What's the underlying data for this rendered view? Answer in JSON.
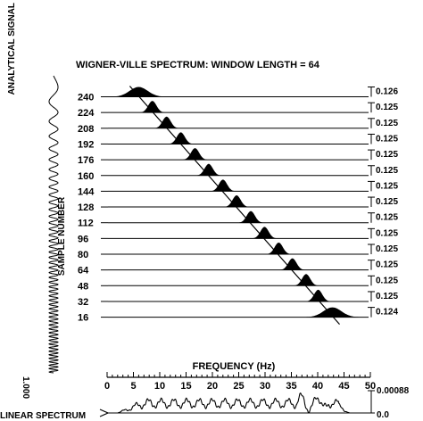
{
  "chart_data": {
    "type": "line",
    "title": "WIGNER-VILLE SPECTRUM: WINDOW LENGTH = 64",
    "left_label": "ANALYTICAL SIGNAL",
    "ylabel": "SAMPLE NUMBER",
    "xlabel": "FREQUENCY (Hz)",
    "bottom_label": "LINEAR SPECTRUM",
    "bottom_left_value": "1.000",
    "bottom_right_top": "0.00088",
    "bottom_right_bottom": "0.0",
    "xlim": [
      0,
      50
    ],
    "x_ticks": [
      "0",
      "5",
      "10",
      "15",
      "20",
      "25",
      "30",
      "35",
      "40",
      "45",
      "50"
    ],
    "rows": [
      {
        "sample": "240",
        "peak_freq": 6.0,
        "max": "0.126"
      },
      {
        "sample": "224",
        "peak_freq": 8.6,
        "max": "0.125"
      },
      {
        "sample": "208",
        "peak_freq": 11.3,
        "max": "0.125"
      },
      {
        "sample": "192",
        "peak_freq": 14.0,
        "max": "0.125"
      },
      {
        "sample": "176",
        "peak_freq": 16.7,
        "max": "0.125"
      },
      {
        "sample": "160",
        "peak_freq": 19.3,
        "max": "0.125"
      },
      {
        "sample": "144",
        "peak_freq": 22.0,
        "max": "0.125"
      },
      {
        "sample": "128",
        "peak_freq": 24.6,
        "max": "0.125"
      },
      {
        "sample": "112",
        "peak_freq": 27.3,
        "max": "0.125"
      },
      {
        "sample": "96",
        "peak_freq": 29.9,
        "max": "0.125"
      },
      {
        "sample": "80",
        "peak_freq": 32.6,
        "max": "0.125"
      },
      {
        "sample": "64",
        "peak_freq": 35.2,
        "max": "0.125"
      },
      {
        "sample": "48",
        "peak_freq": 37.8,
        "max": "0.125"
      },
      {
        "sample": "32",
        "peak_freq": 40.1,
        "max": "0.125"
      },
      {
        "sample": "16",
        "peak_freq": 42.8,
        "max": "0.124"
      }
    ]
  }
}
